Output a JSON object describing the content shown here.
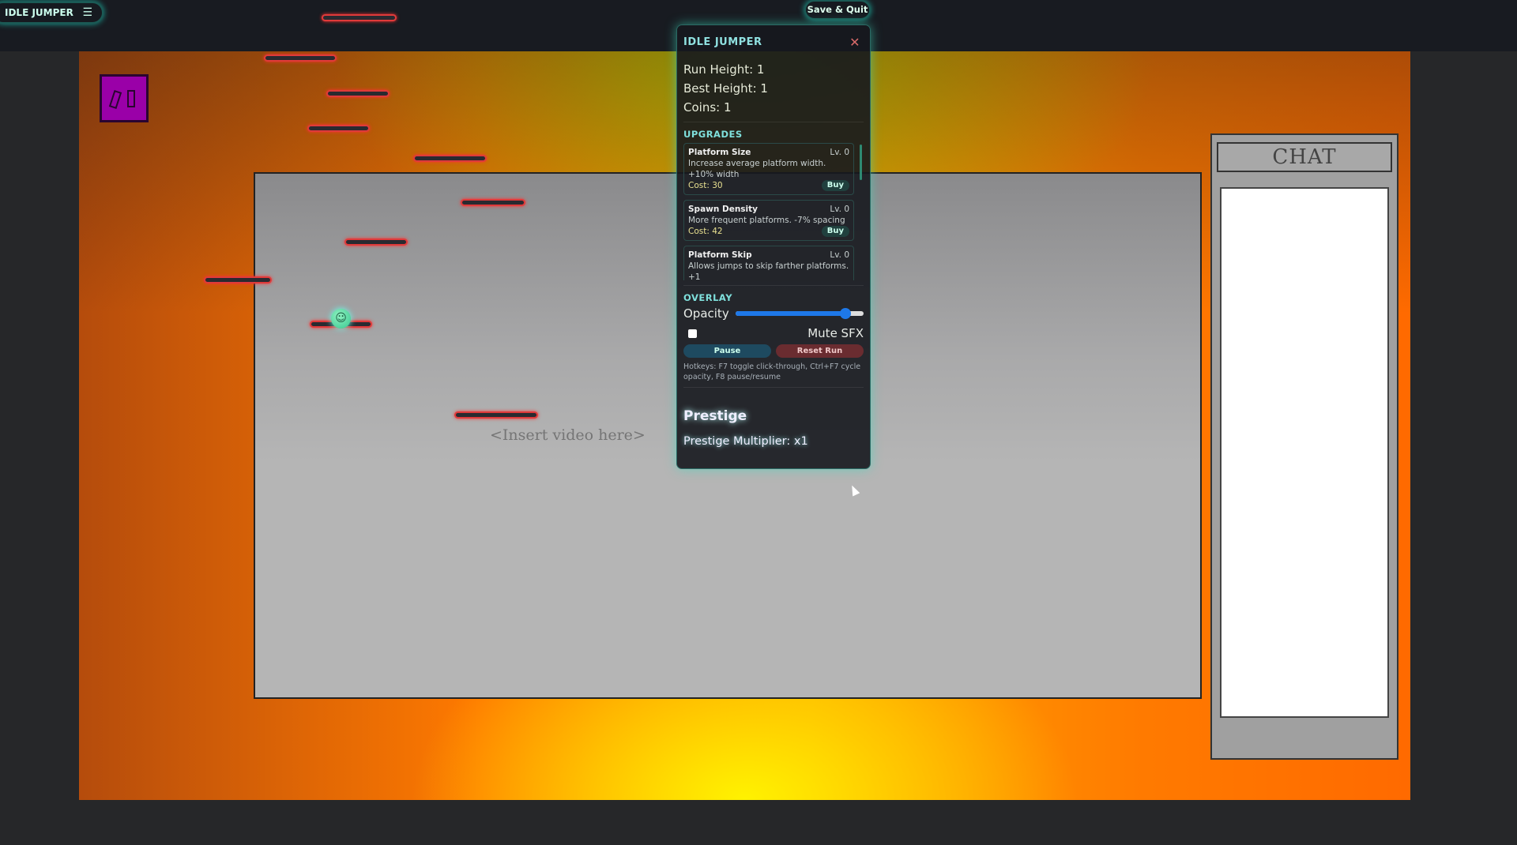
{
  "app": {
    "title": "IDLE JUMPER",
    "menu_icon": "hamburger-icon",
    "save_quit": "Save & Quit"
  },
  "game": {
    "video_placeholder": "<Insert video here>",
    "player_face": "☺"
  },
  "chat": {
    "title": "CHAT"
  },
  "panel": {
    "title": "IDLE JUMPER",
    "close": "✕",
    "stats": {
      "run_height": "Run Height: 1",
      "best_height": "Best Height: 1",
      "coins": "Coins: 1"
    },
    "upgrades_header": "UPGRADES",
    "upgrades": [
      {
        "name": "Platform Size",
        "level": "Lv. 0",
        "desc": "Increase average platform width. +10% width",
        "cost": "Cost: 30",
        "buy": "Buy"
      },
      {
        "name": "Spawn Density",
        "level": "Lv. 0",
        "desc": "More frequent platforms. -7% spacing",
        "cost": "Cost: 42",
        "buy": "Buy"
      },
      {
        "name": "Platform Skip",
        "level": "Lv. 0",
        "desc": "Allows jumps to skip farther platforms. +1"
      }
    ],
    "overlay_header": "OVERLAY",
    "opacity_label": "Opacity",
    "opacity_value": 0.86,
    "mute_label": "Mute SFX",
    "mute_checked": false,
    "pause": "Pause",
    "reset": "Reset Run",
    "hotkeys": "Hotkeys: F7 toggle click-through, Ctrl+F7 cycle opacity, F8 pause/resume",
    "prestige_title": "Prestige",
    "prestige_multiplier": "Prestige Multiplier: x1"
  },
  "colors": {
    "accent": "#7fe0dc",
    "platform_border": "#e03a3a",
    "slider": "#1e78e8",
    "purple_block": "#9a00a8"
  }
}
